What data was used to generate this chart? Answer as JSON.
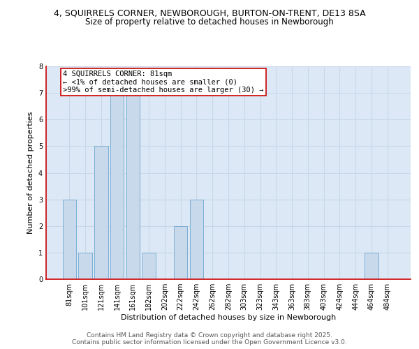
{
  "title1": "4, SQUIRRELS CORNER, NEWBOROUGH, BURTON-ON-TRENT, DE13 8SA",
  "title2": "Size of property relative to detached houses in Newborough",
  "xlabel": "Distribution of detached houses by size in Newborough",
  "ylabel": "Number of detached properties",
  "categories": [
    "81sqm",
    "101sqm",
    "121sqm",
    "141sqm",
    "161sqm",
    "182sqm",
    "202sqm",
    "222sqm",
    "242sqm",
    "262sqm",
    "282sqm",
    "303sqm",
    "323sqm",
    "343sqm",
    "363sqm",
    "383sqm",
    "403sqm",
    "424sqm",
    "444sqm",
    "464sqm",
    "484sqm"
  ],
  "values": [
    3,
    1,
    5,
    7,
    7,
    1,
    0,
    2,
    3,
    0,
    0,
    0,
    0,
    0,
    0,
    0,
    0,
    0,
    0,
    1,
    0
  ],
  "bar_color": "#c9d9ec",
  "bar_edge_color": "#7bafd4",
  "highlight_bar_index": 0,
  "highlight_edge_color": "#cc0000",
  "annotation_text": "4 SQUIRRELS CORNER: 81sqm\n← <1% of detached houses are smaller (0)\n>99% of semi-detached houses are larger (30) →",
  "annotation_box_color": "#ffffff",
  "annotation_box_edge_color": "#cc0000",
  "ylim": [
    0,
    8
  ],
  "yticks": [
    0,
    1,
    2,
    3,
    4,
    5,
    6,
    7,
    8
  ],
  "grid_color": "#c8d8e8",
  "background_color": "#dce8f5",
  "border_color": "#cc0000",
  "footer_text": "Contains HM Land Registry data © Crown copyright and database right 2025.\nContains public sector information licensed under the Open Government Licence v3.0.",
  "title_fontsize": 9,
  "subtitle_fontsize": 8.5,
  "xlabel_fontsize": 8,
  "ylabel_fontsize": 8,
  "tick_fontsize": 7,
  "annotation_fontsize": 7.5,
  "footer_fontsize": 6.5
}
